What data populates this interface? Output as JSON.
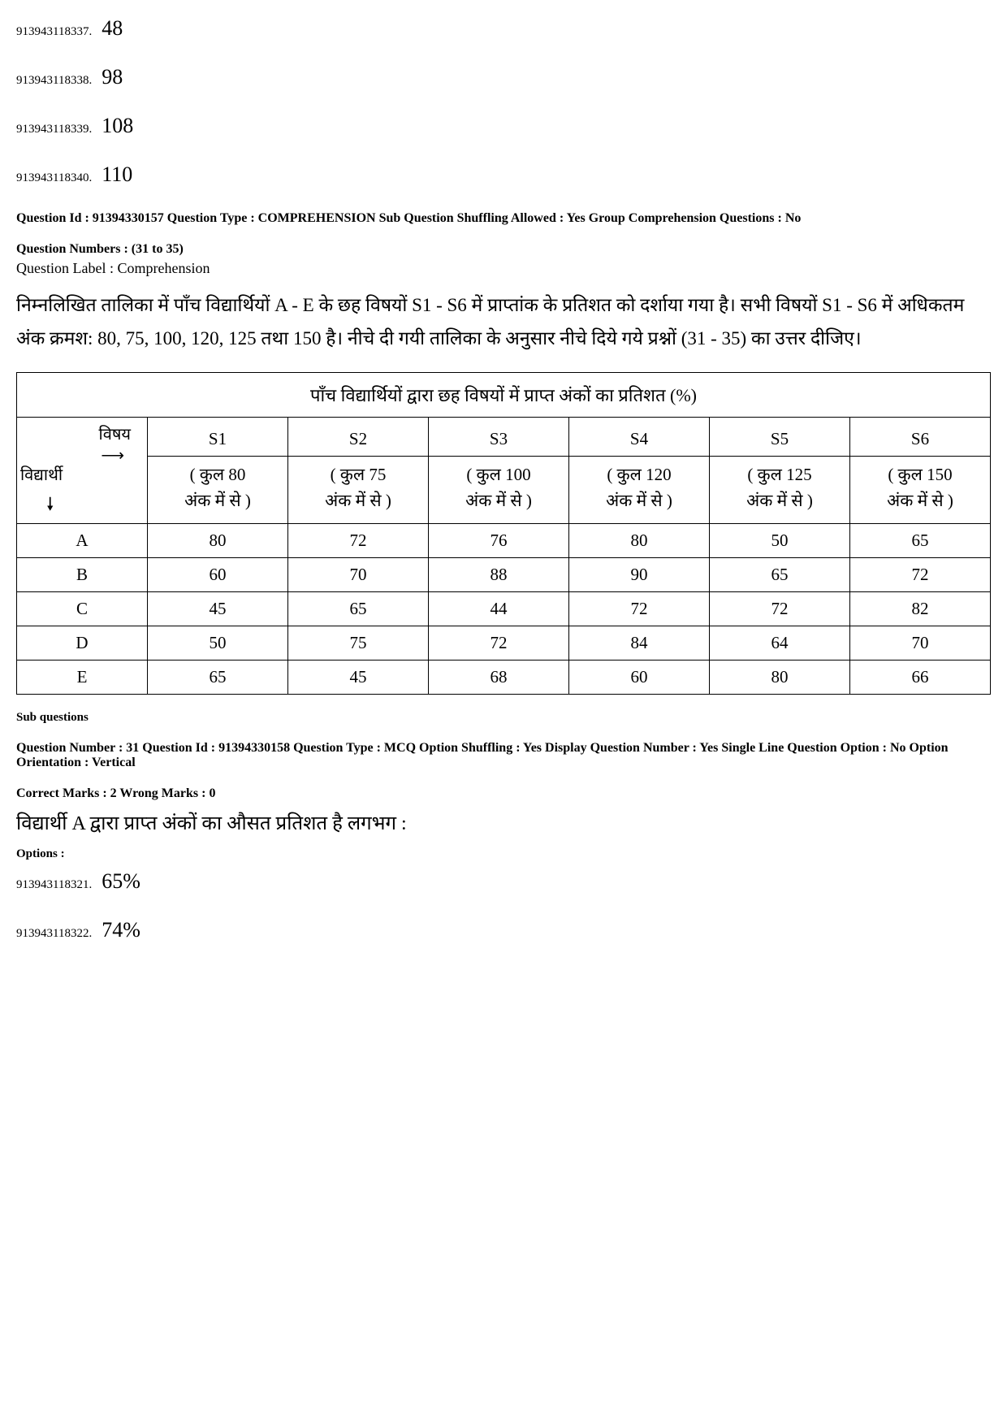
{
  "top_options": [
    {
      "id": "913943118337.",
      "value": "48"
    },
    {
      "id": "913943118338.",
      "value": "98"
    },
    {
      "id": "913943118339.",
      "value": "108"
    },
    {
      "id": "913943118340.",
      "value": "110"
    }
  ],
  "comp_meta": "Question Id : 91394330157  Question Type : COMPREHENSION  Sub Question Shuffling Allowed : Yes  Group Comprehension Questions : No",
  "question_numbers": "Question Numbers : (31 to 35)",
  "question_label": "Question Label : Comprehension",
  "passage": "निम्नलिखित तालिका में पाँच विद्यार्थियों A - E के छह विषयों S1 - S6 में प्राप्तांक के प्रतिशत को दर्शाया गया है।  सभी विषयों S1 - S6 में अधिकतम अंक क्रमश: 80, 75, 100, 120, 125 तथा 150 है।  नीचे दी गयी तालिका के अनुसार नीचे दिये गये प्रश्नों (31 - 35)  का उत्तर दीजिए।",
  "table": {
    "title": "पाँच विद्यार्थियों द्वारा छह विषयों में प्राप्त अंकों का प्रतिशत (%)",
    "corner_top": "विषय",
    "corner_bottom": "विद्यार्थी",
    "subjects": [
      {
        "name": "S1",
        "total": "( कुल 80",
        "suffix": "अंक में से )"
      },
      {
        "name": "S2",
        "total": "( कुल 75",
        "suffix": "अंक में से )"
      },
      {
        "name": "S3",
        "total": "( कुल 100",
        "suffix": "अंक में से )"
      },
      {
        "name": "S4",
        "total": "( कुल 120",
        "suffix": "अंक में से )"
      },
      {
        "name": "S5",
        "total": "( कुल 125",
        "suffix": "अंक में से )"
      },
      {
        "name": "S6",
        "total": "( कुल 150",
        "suffix": "अंक में से )"
      }
    ],
    "rows": [
      {
        "student": "A",
        "vals": [
          "80",
          "72",
          "76",
          "80",
          "50",
          "65"
        ]
      },
      {
        "student": "B",
        "vals": [
          "60",
          "70",
          "88",
          "90",
          "65",
          "72"
        ]
      },
      {
        "student": "C",
        "vals": [
          "45",
          "65",
          "44",
          "72",
          "72",
          "82"
        ]
      },
      {
        "student": "D",
        "vals": [
          "50",
          "75",
          "72",
          "84",
          "64",
          "70"
        ]
      },
      {
        "student": "E",
        "vals": [
          "65",
          "45",
          "68",
          "60",
          "80",
          "66"
        ]
      }
    ]
  },
  "sub_questions_label": "Sub questions",
  "q31_meta1": "Question Number : 31  Question Id : 91394330158  Question Type : MCQ  Option Shuffling : Yes  Display Question Number : Yes  Single Line Question Option : No  Option Orientation : Vertical",
  "q31_meta2": "Correct Marks : 2  Wrong Marks : 0",
  "q31_text": "विद्यार्थी A द्वारा प्राप्त अंकों का औसत प्रतिशत है लगभग :",
  "options_label": "Options :",
  "q31_options": [
    {
      "id": "913943118321.",
      "value": "65%"
    },
    {
      "id": "913943118322.",
      "value": "74%"
    }
  ]
}
